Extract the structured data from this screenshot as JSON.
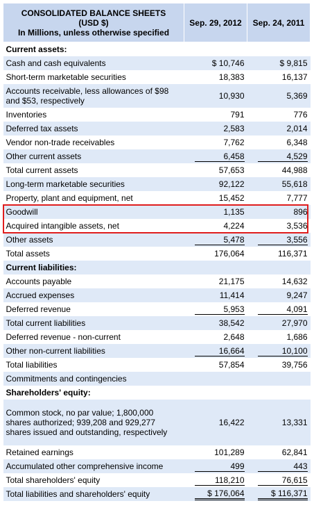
{
  "header": {
    "title_line1": "CONSOLIDATED BALANCE SHEETS",
    "title_line2": "(USD $)",
    "title_line3": "In Millions, unless otherwise specified",
    "col_2012": "Sep. 29, 2012",
    "col_2011": "Sep. 24, 2011"
  },
  "rows": [
    {
      "label": "Current assets:",
      "v2012": "",
      "v2011": "",
      "style": "section"
    },
    {
      "label": "Cash and cash equivalents",
      "v2012": "$ 10,746",
      "v2011": "$ 9,815"
    },
    {
      "label": "Short-term marketable securities",
      "v2012": "18,383",
      "v2011": "16,137"
    },
    {
      "label": "Accounts receivable, less allowances of $98 and $53, respectively",
      "v2012": "10,930",
      "v2011": "5,369",
      "style": "mid"
    },
    {
      "label": "Inventories",
      "v2012": "791",
      "v2011": "776"
    },
    {
      "label": "Deferred tax assets",
      "v2012": "2,583",
      "v2011": "2,014"
    },
    {
      "label": "Vendor non-trade receivables",
      "v2012": "7,762",
      "v2011": "6,348"
    },
    {
      "label": "Other current assets",
      "v2012": "6,458",
      "v2011": "4,529",
      "line": "under"
    },
    {
      "label": "Total current assets",
      "v2012": "57,653",
      "v2011": "44,988"
    },
    {
      "label": "Long-term marketable securities",
      "v2012": "92,122",
      "v2011": "55,618"
    },
    {
      "label": "Property, plant and equipment, net",
      "v2012": "15,452",
      "v2011": "7,777"
    },
    {
      "label": "Goodwill",
      "v2012": "1,135",
      "v2011": "896"
    },
    {
      "label": "Acquired intangible assets, net",
      "v2012": "4,224",
      "v2011": "3,536"
    },
    {
      "label": "Other assets",
      "v2012": "5,478",
      "v2011": "3,556",
      "line": "under"
    },
    {
      "label": "Total assets",
      "v2012": "176,064",
      "v2011": "116,371"
    },
    {
      "label": "Current liabilities:",
      "v2012": "",
      "v2011": "",
      "style": "section"
    },
    {
      "label": "Accounts payable",
      "v2012": "21,175",
      "v2011": "14,632"
    },
    {
      "label": "Accrued expenses",
      "v2012": "11,414",
      "v2011": "9,247"
    },
    {
      "label": "Deferred revenue",
      "v2012": "5,953",
      "v2011": "4,091",
      "line": "under"
    },
    {
      "label": "Total current liabilities",
      "v2012": "38,542",
      "v2011": "27,970"
    },
    {
      "label": "Deferred revenue - non-current",
      "v2012": "2,648",
      "v2011": "1,686"
    },
    {
      "label": "Other non-current liabilities",
      "v2012": "16,664",
      "v2011": "10,100",
      "line": "under"
    },
    {
      "label": "Total liabilities",
      "v2012": "57,854",
      "v2011": "39,756"
    },
    {
      "label": "Commitments and contingencies",
      "v2012": "",
      "v2011": ""
    },
    {
      "label": "Shareholders' equity:",
      "v2012": "",
      "v2011": "",
      "style": "section"
    },
    {
      "label": "Common stock, no par value; 1,800,000 shares authorized; 939,208 and 929,277 shares issued and outstanding, respectively",
      "v2012": "16,422",
      "v2011": "13,331",
      "style": "tall"
    },
    {
      "label": "Retained earnings",
      "v2012": "101,289",
      "v2011": "62,841"
    },
    {
      "label": "Accumulated other comprehensive income",
      "v2012": "499",
      "v2011": "443",
      "line": "under"
    },
    {
      "label": "Total shareholders' equity",
      "v2012": "118,210",
      "v2011": "76,615",
      "line": "under"
    },
    {
      "label": "Total liabilities and shareholders' equity",
      "v2012": "$ 176,064",
      "v2011": "$ 116,371",
      "line": "double"
    }
  ],
  "highlight_color": "#e01d1d",
  "header_color": "#c7d6ee",
  "stripe_color": "#dfe9f7"
}
